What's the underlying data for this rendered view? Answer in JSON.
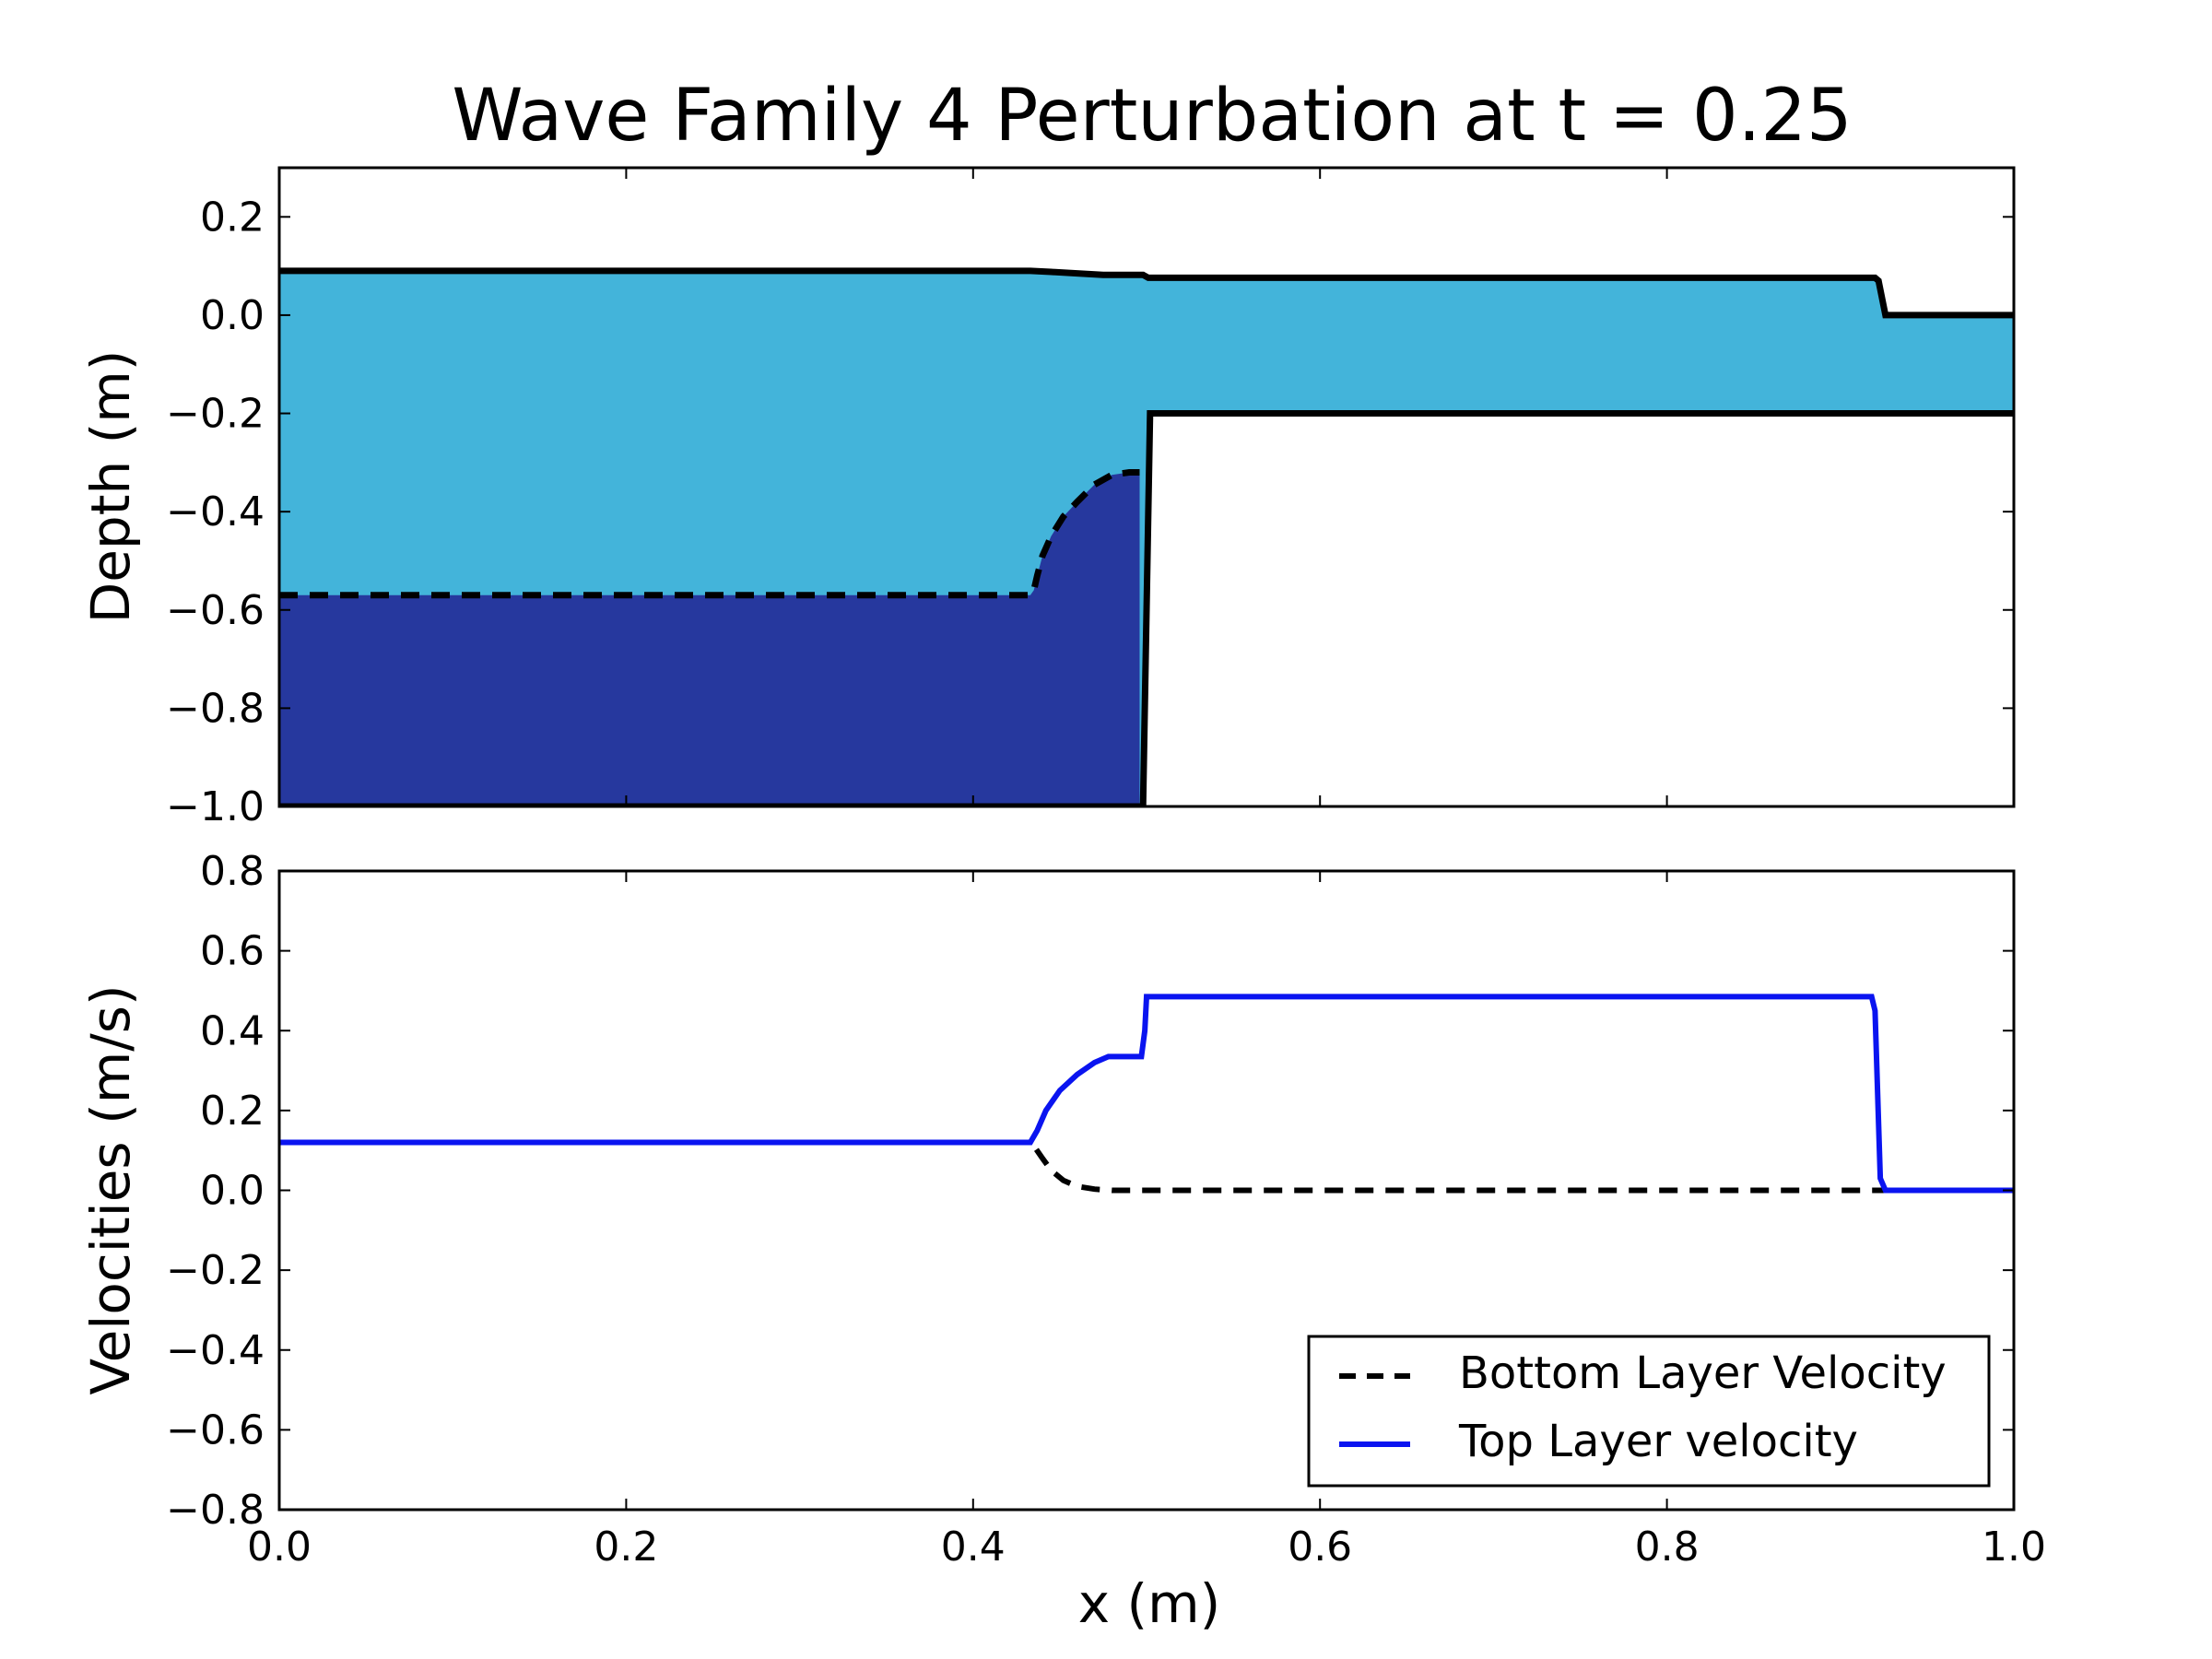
{
  "figure": {
    "title": "Wave Family 4 Perturbation at t = 0.25",
    "xlabel": "x (m)"
  },
  "colors": {
    "top_layer_fill": "#43b4da",
    "bottom_layer_fill": "#26389e",
    "outline": "#000000",
    "top_velocity": "#0a14f0",
    "bottom_velocity": "#000000"
  },
  "chart_data": [
    {
      "type": "area",
      "title": "Wave Family 4 Perturbation at t = 0.25",
      "xlabel": "",
      "ylabel": "Depth (m)",
      "xlim": [
        0.0,
        1.0
      ],
      "ylim": [
        -1.0,
        0.3
      ],
      "grid": false,
      "x_ticks": [
        0.0,
        0.2,
        0.4,
        0.6,
        0.8,
        1.0
      ],
      "x_tick_labels": [
        "",
        "",
        "",
        "",
        "",
        ""
      ],
      "y_ticks": [
        -1.0,
        -0.8,
        -0.6,
        -0.4,
        -0.2,
        0.0,
        0.2
      ],
      "y_tick_labels": [
        "−1.0",
        "−0.8",
        "−0.6",
        "−0.4",
        "−0.2",
        "0.0",
        "0.2"
      ],
      "surface": {
        "x": [
          0.0,
          0.433,
          0.445,
          0.46,
          0.475,
          0.498,
          0.501,
          0.92,
          0.922,
          0.926,
          1.0
        ],
        "y": [
          0.09,
          0.09,
          0.088,
          0.085,
          0.082,
          0.082,
          0.076,
          0.076,
          0.07,
          0.0,
          0.0
        ]
      },
      "internal_interface": {
        "x": [
          0.0,
          0.433,
          0.435,
          0.437,
          0.44,
          0.445,
          0.452,
          0.46,
          0.47,
          0.48,
          0.49,
          0.496
        ],
        "y": [
          -0.57,
          -0.57,
          -0.56,
          -0.53,
          -0.49,
          -0.45,
          -0.41,
          -0.38,
          -0.345,
          -0.325,
          -0.32,
          -0.32
        ]
      },
      "bathymetry": {
        "x": [
          0.0,
          0.498,
          0.502,
          1.0
        ],
        "y": [
          -1.0,
          -1.0,
          -0.2,
          -0.2
        ]
      }
    },
    {
      "type": "line",
      "xlabel": "x (m)",
      "ylabel": "Velocities (m/s)",
      "xlim": [
        0.0,
        1.0
      ],
      "ylim": [
        -0.8,
        0.8
      ],
      "grid": false,
      "legend_position": "lower-right",
      "x_ticks": [
        0.0,
        0.2,
        0.4,
        0.6,
        0.8,
        1.0
      ],
      "x_tick_labels": [
        "0.0",
        "0.2",
        "0.4",
        "0.6",
        "0.8",
        "1.0"
      ],
      "y_ticks": [
        -0.8,
        -0.6,
        -0.4,
        -0.2,
        0.0,
        0.2,
        0.4,
        0.6,
        0.8
      ],
      "y_tick_labels": [
        "−0.8",
        "−0.6",
        "−0.4",
        "−0.2",
        "0.0",
        "0.2",
        "0.4",
        "0.6",
        "0.8"
      ],
      "series": [
        {
          "name": "Bottom Layer Velocity",
          "style": "dashed",
          "x": [
            0.0,
            0.433,
            0.436,
            0.44,
            0.445,
            0.452,
            0.46,
            0.47,
            0.48,
            1.0
          ],
          "y": [
            0.12,
            0.12,
            0.105,
            0.08,
            0.05,
            0.025,
            0.01,
            0.003,
            0.0,
            0.0
          ]
        },
        {
          "name": "Top Layer velocity",
          "style": "solid",
          "x": [
            0.0,
            0.433,
            0.437,
            0.442,
            0.45,
            0.46,
            0.47,
            0.478,
            0.485,
            0.497,
            0.499,
            0.5,
            0.918,
            0.92,
            0.923,
            0.926,
            1.0
          ],
          "y": [
            0.12,
            0.12,
            0.15,
            0.2,
            0.25,
            0.29,
            0.32,
            0.335,
            0.335,
            0.335,
            0.4,
            0.485,
            0.485,
            0.45,
            0.03,
            0.0,
            0.0
          ]
        }
      ]
    }
  ]
}
